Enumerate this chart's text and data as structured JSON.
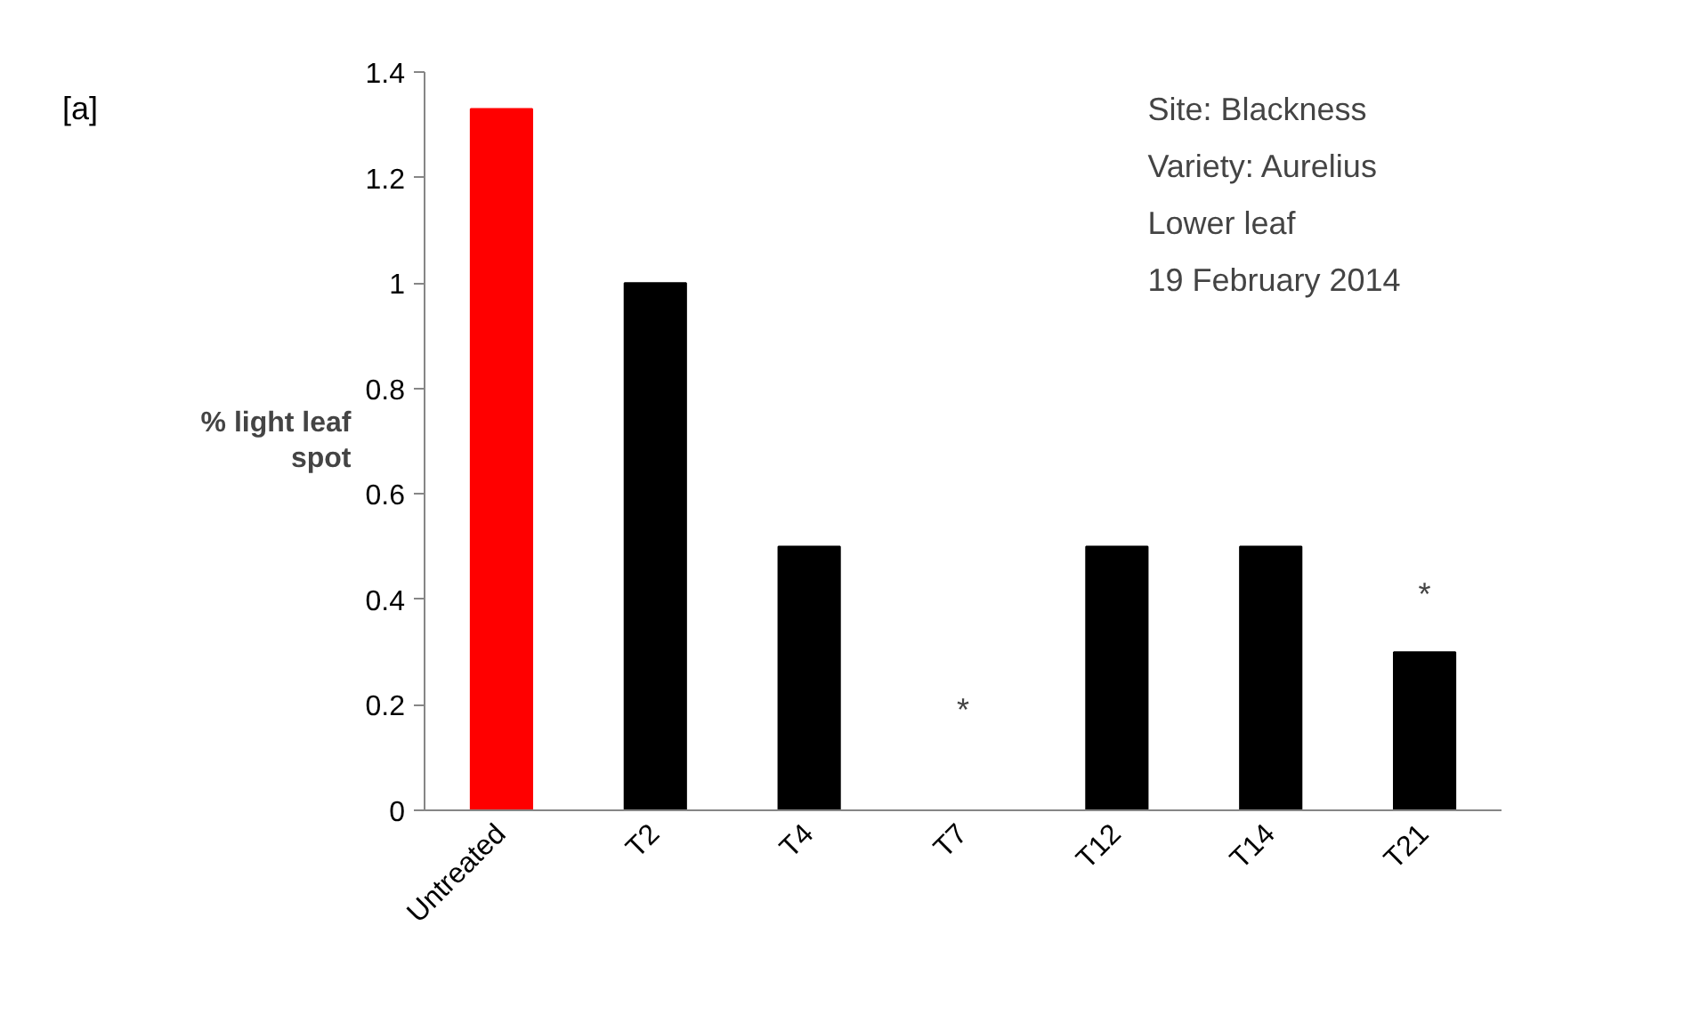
{
  "chart_data": {
    "type": "bar",
    "ylabel": "% light leaf spot",
    "categories": [
      "Untreated",
      "T2",
      "T4",
      "T7",
      "T12",
      "T14",
      "T21"
    ],
    "values": [
      1.33,
      1.0,
      0.5,
      0,
      0.5,
      0.5,
      0.3
    ],
    "colors": [
      "#ff0000",
      "#000000",
      "#000000",
      "#000000",
      "#000000",
      "#000000",
      "#000000"
    ],
    "ylim": [
      0,
      1.4
    ],
    "yticks": [
      0,
      0.2,
      0.4,
      0.6,
      0.8,
      1,
      1.2,
      1.4
    ],
    "grid": false,
    "annotations": [
      "[a]",
      "Site: Blackness",
      "Variety: Aurelius",
      "Lower leaf",
      "19 February 2014",
      "*",
      "*"
    ]
  }
}
